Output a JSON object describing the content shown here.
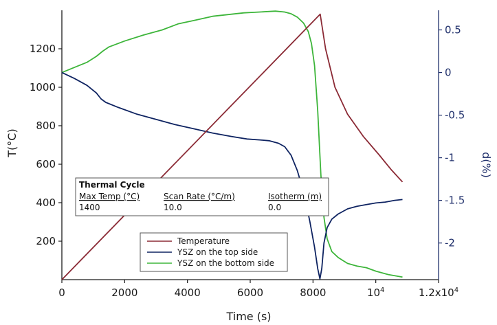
{
  "chart_data": {
    "type": "line",
    "xlabel": "Time (s)",
    "ylabel": "T(°C)",
    "y2label": "d(%)",
    "xlim": [
      0,
      12000
    ],
    "ylim": [
      0,
      1400
    ],
    "y2lim": [
      -2.43,
      0.73
    ],
    "x_ticks": [
      {
        "value": 0,
        "label": "0"
      },
      {
        "value": 2000,
        "label": "2000"
      },
      {
        "value": 4000,
        "label": "4000"
      },
      {
        "value": 6000,
        "label": "6000"
      },
      {
        "value": 8000,
        "label": "8000"
      },
      {
        "value": 10000,
        "label": "10",
        "sup": "4"
      },
      {
        "value": 12000,
        "label": "1.2x10",
        "sup": "4"
      }
    ],
    "y_ticks": [
      200,
      400,
      600,
      800,
      1000,
      1200
    ],
    "y2_ticks": [
      {
        "value": 0.5,
        "label": "0.5"
      },
      {
        "value": 0,
        "label": "0"
      },
      {
        "value": -0.5,
        "label": "-0.5"
      },
      {
        "value": -1,
        "label": "-1"
      },
      {
        "value": -1.5,
        "label": "-1.5"
      },
      {
        "value": -2,
        "label": "-2"
      }
    ],
    "grid": false,
    "legend_position": "bottom-center",
    "colors": {
      "temperature": "#8b2a35",
      "top": "#0e2361",
      "bottom": "#3db53a",
      "axis": "#1a1a1a",
      "right_axis": "#1f2f6b"
    },
    "series": [
      {
        "name": "Temperature",
        "axis": "left",
        "color": "#8b2a35",
        "points": [
          [
            0,
            0
          ],
          [
            8230,
            1380
          ],
          [
            8400,
            1200
          ],
          [
            8700,
            1000
          ],
          [
            9100,
            860
          ],
          [
            9600,
            745
          ],
          [
            10100,
            650
          ],
          [
            10500,
            570
          ],
          [
            10850,
            508
          ]
        ]
      },
      {
        "name": "YSZ on the top side",
        "axis": "right",
        "color": "#0e2361",
        "points": [
          [
            0,
            0
          ],
          [
            400,
            -0.07
          ],
          [
            800,
            -0.15
          ],
          [
            1100,
            -0.24
          ],
          [
            1250,
            -0.31
          ],
          [
            1400,
            -0.35
          ],
          [
            1800,
            -0.41
          ],
          [
            2400,
            -0.49
          ],
          [
            3000,
            -0.55
          ],
          [
            3600,
            -0.61
          ],
          [
            4200,
            -0.66
          ],
          [
            4800,
            -0.71
          ],
          [
            5400,
            -0.75
          ],
          [
            5900,
            -0.78
          ],
          [
            6300,
            -0.79
          ],
          [
            6600,
            -0.8
          ],
          [
            6900,
            -0.83
          ],
          [
            7100,
            -0.87
          ],
          [
            7300,
            -0.97
          ],
          [
            7500,
            -1.15
          ],
          [
            7700,
            -1.4
          ],
          [
            7900,
            -1.75
          ],
          [
            8050,
            -2.05
          ],
          [
            8150,
            -2.3
          ],
          [
            8220,
            -2.42
          ],
          [
            8280,
            -2.3
          ],
          [
            8350,
            -2.0
          ],
          [
            8450,
            -1.82
          ],
          [
            8600,
            -1.72
          ],
          [
            8800,
            -1.66
          ],
          [
            9100,
            -1.6
          ],
          [
            9400,
            -1.57
          ],
          [
            9700,
            -1.55
          ],
          [
            10000,
            -1.53
          ],
          [
            10300,
            -1.52
          ],
          [
            10600,
            -1.5
          ],
          [
            10850,
            -1.49
          ]
        ]
      },
      {
        "name": "YSZ on the bottom side",
        "axis": "right",
        "color": "#3db53a",
        "points": [
          [
            0,
            0
          ],
          [
            400,
            0.06
          ],
          [
            800,
            0.12
          ],
          [
            1100,
            0.19
          ],
          [
            1300,
            0.25
          ],
          [
            1500,
            0.3
          ],
          [
            2000,
            0.37
          ],
          [
            2600,
            0.44
          ],
          [
            3200,
            0.5
          ],
          [
            3700,
            0.57
          ],
          [
            4200,
            0.61
          ],
          [
            4800,
            0.66
          ],
          [
            5300,
            0.68
          ],
          [
            5800,
            0.7
          ],
          [
            6300,
            0.71
          ],
          [
            6800,
            0.72
          ],
          [
            7100,
            0.71
          ],
          [
            7300,
            0.69
          ],
          [
            7500,
            0.65
          ],
          [
            7700,
            0.58
          ],
          [
            7850,
            0.48
          ],
          [
            7950,
            0.34
          ],
          [
            8050,
            0.08
          ],
          [
            8150,
            -0.45
          ],
          [
            8250,
            -1.2
          ],
          [
            8350,
            -1.7
          ],
          [
            8450,
            -1.95
          ],
          [
            8600,
            -2.1
          ],
          [
            8800,
            -2.17
          ],
          [
            9100,
            -2.24
          ],
          [
            9400,
            -2.27
          ],
          [
            9700,
            -2.29
          ],
          [
            10000,
            -2.33
          ],
          [
            10400,
            -2.37
          ],
          [
            10850,
            -2.4
          ]
        ]
      }
    ],
    "legend": [
      {
        "key": "temperature",
        "label": "Temperature"
      },
      {
        "key": "top",
        "label": "YSZ on the top side"
      },
      {
        "key": "bottom",
        "label": "YSZ on the bottom side"
      }
    ],
    "annotation": {
      "title": "Thermal Cycle",
      "headers": [
        "Max Temp (°C)",
        "Scan Rate (°C/m)",
        "Isotherm (m)"
      ],
      "values": [
        "1400",
        "10.0",
        "0.0"
      ]
    }
  }
}
